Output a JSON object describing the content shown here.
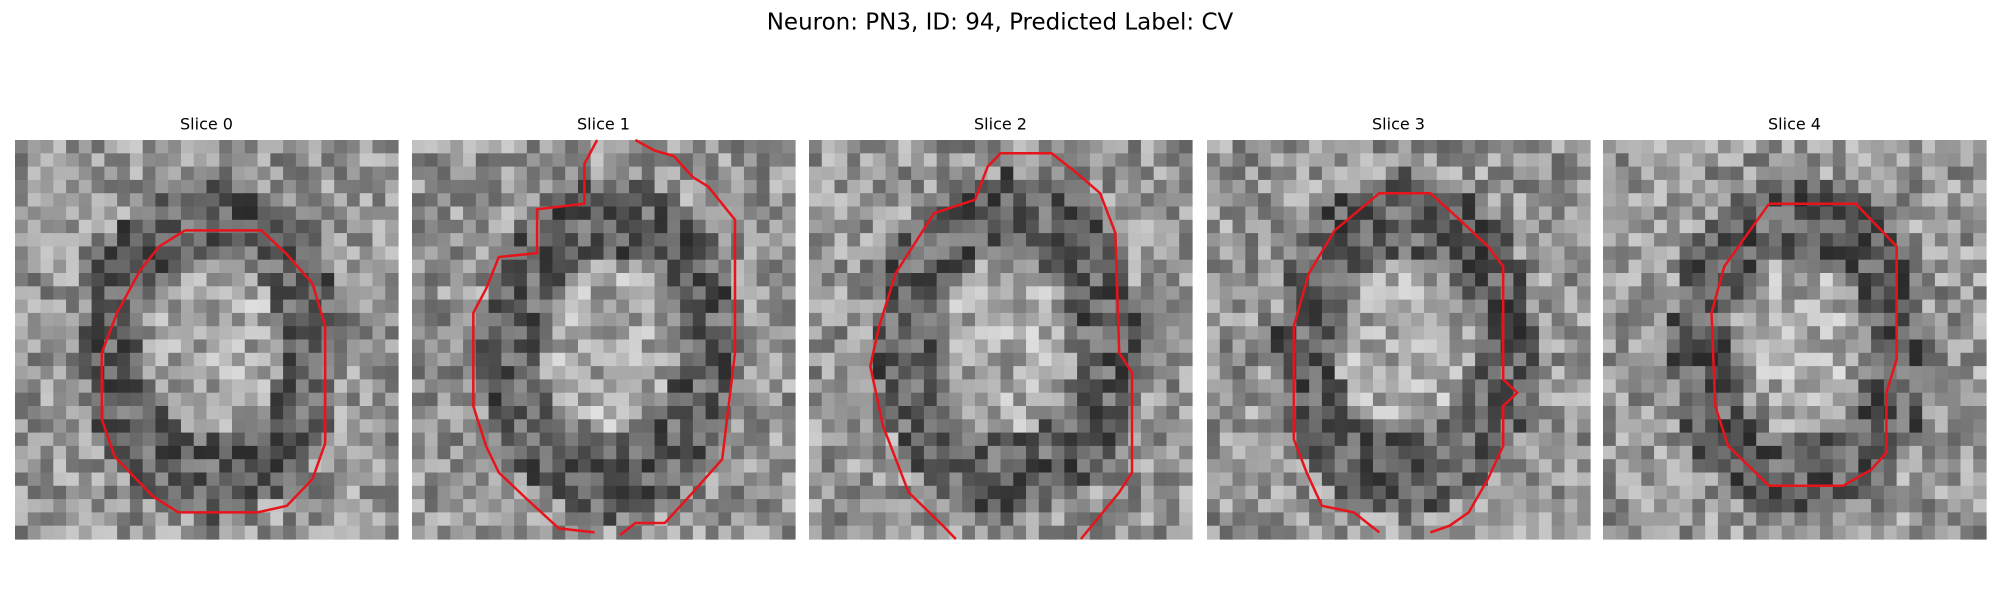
{
  "figure": {
    "title": "Neuron: PN3, ID: 94, Predicted Label: CV",
    "panels": [
      {
        "title": "Slice 0"
      },
      {
        "title": "Slice 1"
      },
      {
        "title": "Slice 2"
      },
      {
        "title": "Slice 3"
      },
      {
        "title": "Slice 4"
      }
    ]
  }
}
